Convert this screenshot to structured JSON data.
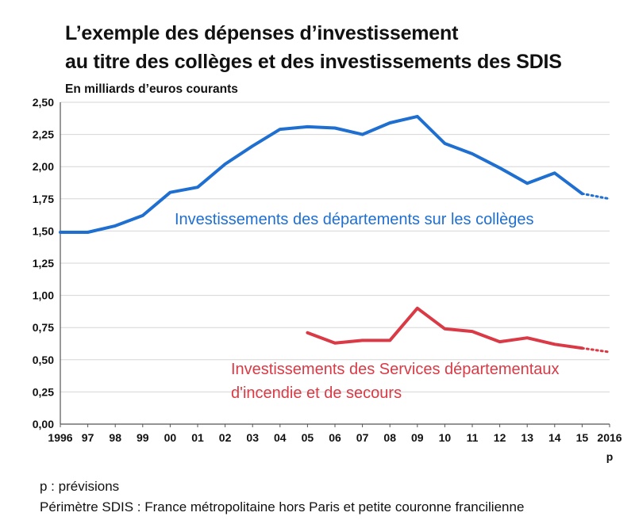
{
  "title_line1": "L’exemple des dépenses d’investissement",
  "title_line2": "au titre des collèges et des investissements des SDIS",
  "unit_label": "En milliards d’euros courants",
  "footnote1": "p : prévisions",
  "footnote2": "Périmètre SDIS : France métropolitaine hors Paris et petite couronne francilienne",
  "chart_data": {
    "type": "line",
    "x_ticks": [
      "1996",
      "97",
      "98",
      "99",
      "00",
      "01",
      "02",
      "03",
      "04",
      "05",
      "06",
      "07",
      "08",
      "09",
      "10",
      "11",
      "12",
      "13",
      "14",
      "15",
      "2016"
    ],
    "x_tick_sub": "p",
    "y_ticks": [
      "0,00",
      "0,25",
      "0,50",
      "0,75",
      "1,00",
      "1,25",
      "1,50",
      "1,75",
      "2,00",
      "2,25",
      "2,50"
    ],
    "ylim": [
      0,
      2.5
    ],
    "grid": true,
    "series": [
      {
        "name": "Investissements des départements sur les collèges",
        "color": "#1f6fd1",
        "x": [
          1996,
          1997,
          1998,
          1999,
          2000,
          2001,
          2002,
          2003,
          2004,
          2005,
          2006,
          2007,
          2008,
          2009,
          2010,
          2011,
          2012,
          2013,
          2014,
          2015
        ],
        "values": [
          1.49,
          1.49,
          1.54,
          1.62,
          1.8,
          1.84,
          2.02,
          2.16,
          2.29,
          2.31,
          2.3,
          2.25,
          2.34,
          2.39,
          2.18,
          2.1,
          1.99,
          1.87,
          1.95,
          1.79
        ],
        "forecast": [
          [
            2015,
            1.79
          ],
          [
            2016,
            1.75
          ]
        ]
      },
      {
        "name": "Investissements des Services départementaux d'incendie et de secours",
        "label_lines": [
          "Investissements des Services départementaux",
          "d'incendie et de secours"
        ],
        "color": "#d93a45",
        "x": [
          2005,
          2006,
          2007,
          2008,
          2009,
          2010,
          2011,
          2012,
          2013,
          2014,
          2015
        ],
        "values": [
          0.71,
          0.63,
          0.65,
          0.65,
          0.9,
          0.74,
          0.72,
          0.64,
          0.67,
          0.62,
          0.59
        ],
        "forecast": [
          [
            2015,
            0.59
          ],
          [
            2016,
            0.56
          ]
        ]
      }
    ]
  }
}
